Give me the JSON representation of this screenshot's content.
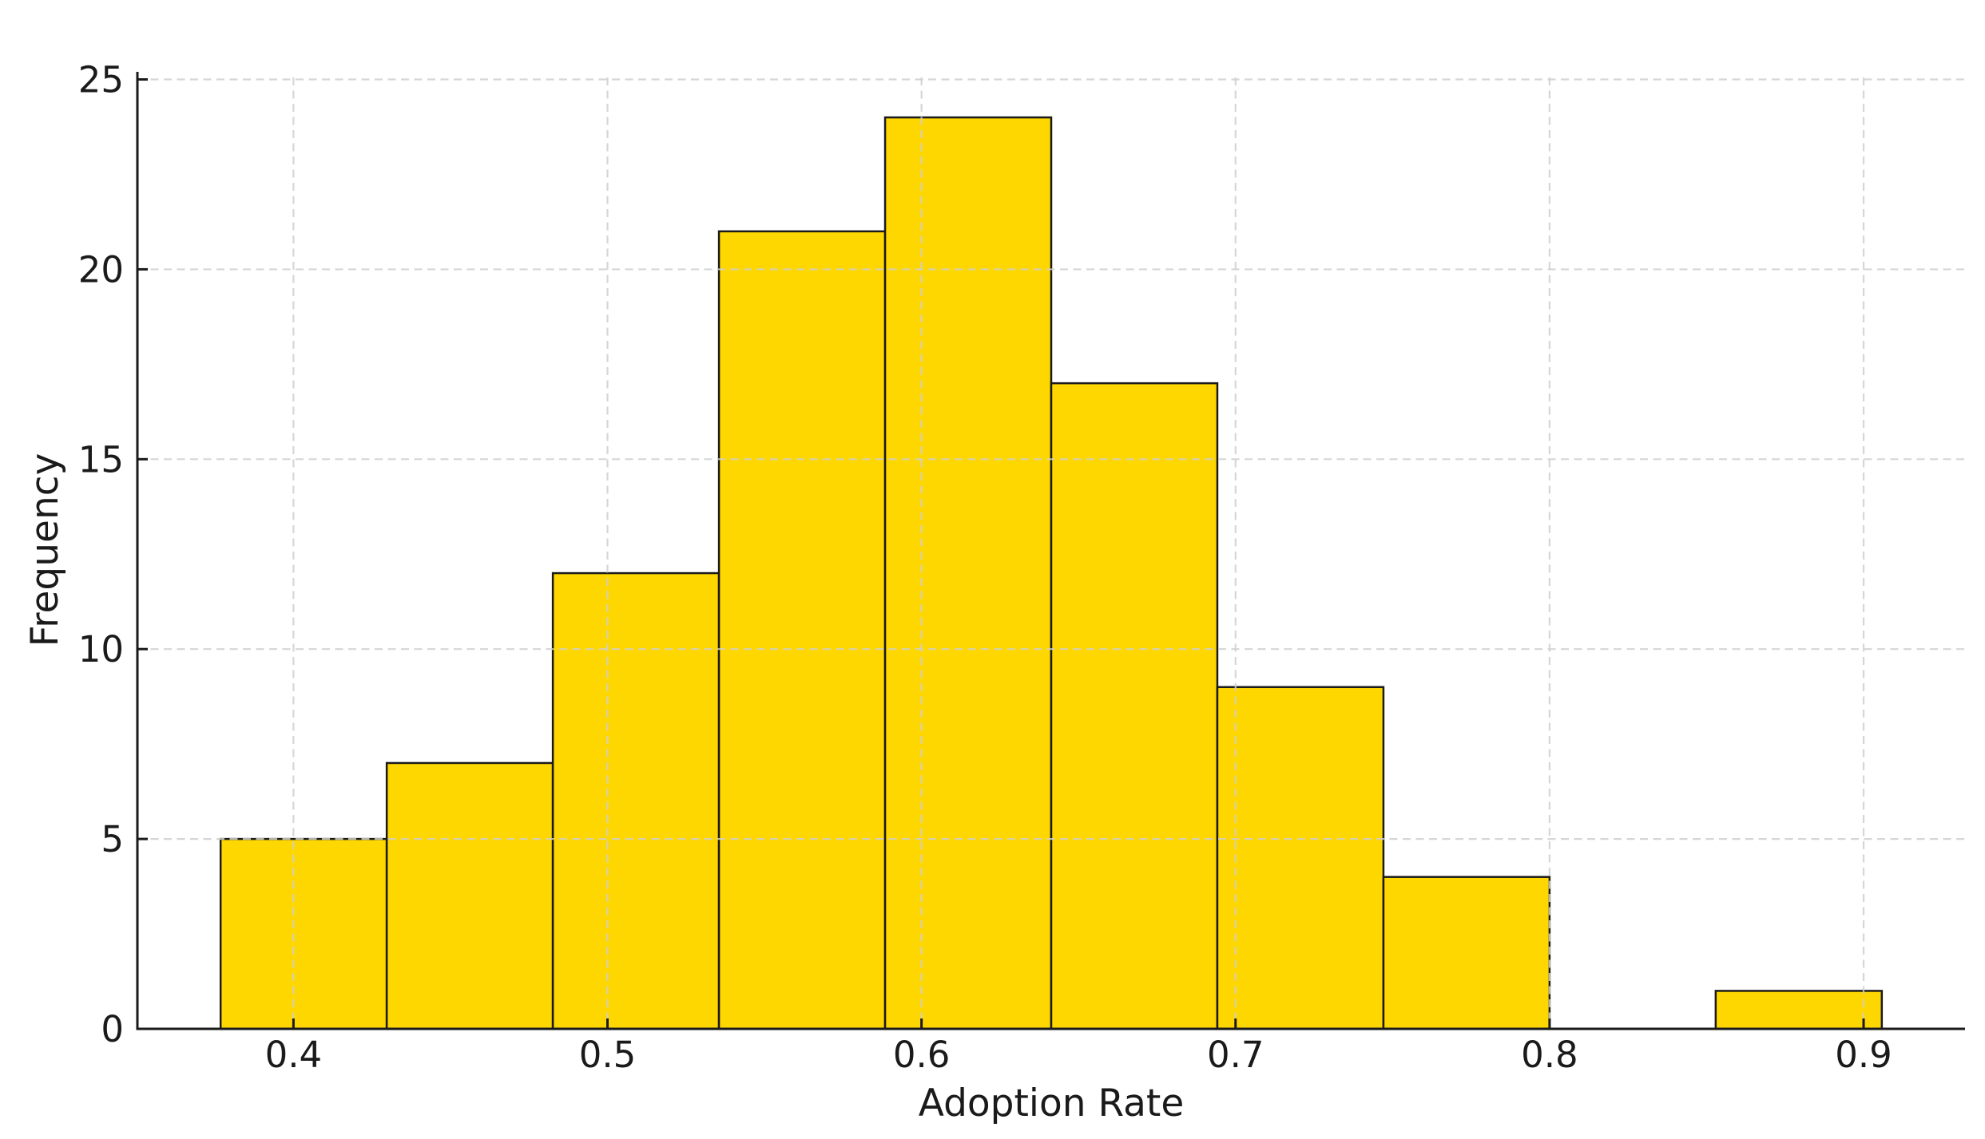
{
  "chart_data": {
    "type": "bar",
    "subtype": "histogram",
    "title": "",
    "xlabel": "Adoption Rate",
    "ylabel": "Frequency",
    "bin_edges": [
      0.3768,
      0.4297,
      0.4826,
      0.5355,
      0.5884,
      0.6413,
      0.6942,
      0.7471,
      0.8,
      0.8529,
      0.9058
    ],
    "counts": [
      5,
      7,
      12,
      21,
      24,
      17,
      9,
      4,
      0,
      1
    ],
    "xticks": [
      0.4,
      0.5,
      0.6,
      0.7,
      0.8,
      0.9
    ],
    "xtick_labels": [
      "0.4",
      "0.5",
      "0.6",
      "0.7",
      "0.8",
      "0.9"
    ],
    "yticks": [
      0,
      5,
      10,
      15,
      20,
      25
    ],
    "ytick_labels": [
      "0",
      "5",
      "10",
      "15",
      "20",
      "25"
    ],
    "xlim": [
      0.3503,
      0.9323
    ],
    "ylim": [
      0,
      25.2
    ],
    "grid": {
      "visible": true,
      "style": "dashed",
      "axes": "both",
      "drawn_over_bars": true
    },
    "legend_position": "none",
    "spines": [
      "left",
      "bottom"
    ],
    "tick_direction": "in",
    "colors": {
      "bar_fill": "#FFD700",
      "bar_edge": "#1a1a1a",
      "grid_line": "#cfcfcf",
      "axis_line": "#1a1a1a",
      "tick_text": "#1a1a1a",
      "label_text": "#1a1a1a",
      "background": "#ffffff"
    }
  }
}
